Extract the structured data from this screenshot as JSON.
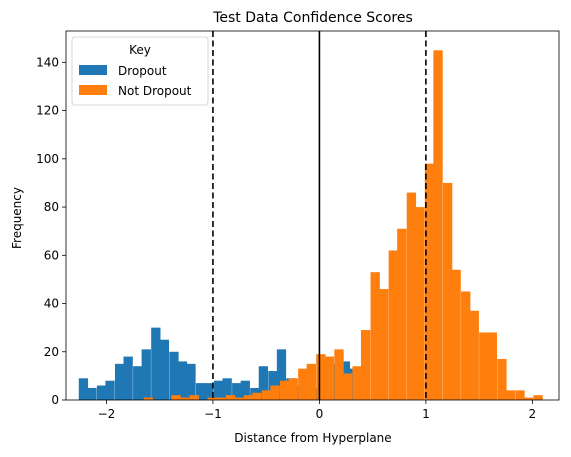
{
  "chart_data": {
    "type": "bar",
    "title": "Test Data Confidence Scores",
    "xlabel": "Distance from Hyperplane",
    "ylabel": "Frequency",
    "xlim": [
      -2.38,
      2.25
    ],
    "ylim": [
      0,
      153
    ],
    "x_ticks": [
      -2,
      -1,
      0,
      1,
      2
    ],
    "x_tick_labels": [
      "−2",
      "−1",
      "0",
      "1",
      "2"
    ],
    "y_ticks": [
      0,
      20,
      40,
      60,
      80,
      100,
      120,
      140
    ],
    "y_tick_labels": [
      "0",
      "20",
      "40",
      "60",
      "80",
      "100",
      "120",
      "140"
    ],
    "grid": false,
    "legend": {
      "title": "Key",
      "position": "top-left"
    },
    "colors": {
      "dropout": "#1f77b4",
      "not_dropout": "#ff7f0e"
    },
    "vertical_lines": [
      {
        "x": -1,
        "style": "dashed"
      },
      {
        "x": 0,
        "style": "solid"
      },
      {
        "x": 1,
        "style": "dashed"
      }
    ],
    "series": [
      {
        "name": "Dropout",
        "bin_width": 0.0845,
        "bins": [
          [
            -2.26,
            9
          ],
          [
            -2.18,
            5
          ],
          [
            -2.09,
            6
          ],
          [
            -2.01,
            8
          ],
          [
            -1.92,
            15
          ],
          [
            -1.84,
            18
          ],
          [
            -1.75,
            14
          ],
          [
            -1.67,
            21
          ],
          [
            -1.58,
            30
          ],
          [
            -1.5,
            25
          ],
          [
            -1.41,
            20
          ],
          [
            -1.33,
            16
          ],
          [
            -1.25,
            15
          ],
          [
            -1.16,
            7
          ],
          [
            -1.08,
            7
          ],
          [
            -0.99,
            8
          ],
          [
            -0.91,
            9
          ],
          [
            -0.82,
            7
          ],
          [
            -0.74,
            8
          ],
          [
            -0.65,
            5
          ],
          [
            -0.57,
            14
          ],
          [
            -0.48,
            12
          ],
          [
            -0.4,
            21
          ],
          [
            -0.31,
            9
          ],
          [
            -0.23,
            6
          ],
          [
            -0.14,
            6
          ],
          [
            -0.06,
            5
          ],
          [
            0.03,
            13
          ],
          [
            0.11,
            15
          ],
          [
            0.2,
            16
          ],
          [
            0.28,
            13
          ]
        ]
      },
      {
        "name": "Not Dropout",
        "bin_width": 0.085,
        "bins": [
          [
            -1.65,
            1
          ],
          [
            -1.56,
            0
          ],
          [
            -1.48,
            0
          ],
          [
            -1.39,
            2
          ],
          [
            -1.31,
            1
          ],
          [
            -1.22,
            2
          ],
          [
            -1.14,
            0
          ],
          [
            -1.05,
            1
          ],
          [
            -0.97,
            1
          ],
          [
            -0.88,
            2
          ],
          [
            -0.8,
            1
          ],
          [
            -0.71,
            2
          ],
          [
            -0.63,
            3
          ],
          [
            -0.54,
            4
          ],
          [
            -0.46,
            6
          ],
          [
            -0.37,
            8
          ],
          [
            -0.29,
            9
          ],
          [
            -0.2,
            13
          ],
          [
            -0.12,
            15
          ],
          [
            -0.03,
            19
          ],
          [
            0.05,
            18
          ],
          [
            0.14,
            21
          ],
          [
            0.22,
            11
          ],
          [
            0.31,
            14
          ],
          [
            0.39,
            29
          ],
          [
            0.48,
            53
          ],
          [
            0.56,
            46
          ],
          [
            0.65,
            62
          ],
          [
            0.73,
            71
          ],
          [
            0.82,
            86
          ],
          [
            0.9,
            80
          ],
          [
            0.99,
            98
          ],
          [
            1.07,
            145
          ],
          [
            1.16,
            90
          ],
          [
            1.24,
            54
          ],
          [
            1.33,
            45
          ],
          [
            1.41,
            37
          ],
          [
            1.5,
            28
          ],
          [
            1.58,
            28
          ],
          [
            1.67,
            17
          ],
          [
            1.75,
            4
          ],
          [
            1.84,
            4
          ],
          [
            1.92,
            1
          ],
          [
            2.01,
            2
          ]
        ]
      }
    ]
  }
}
